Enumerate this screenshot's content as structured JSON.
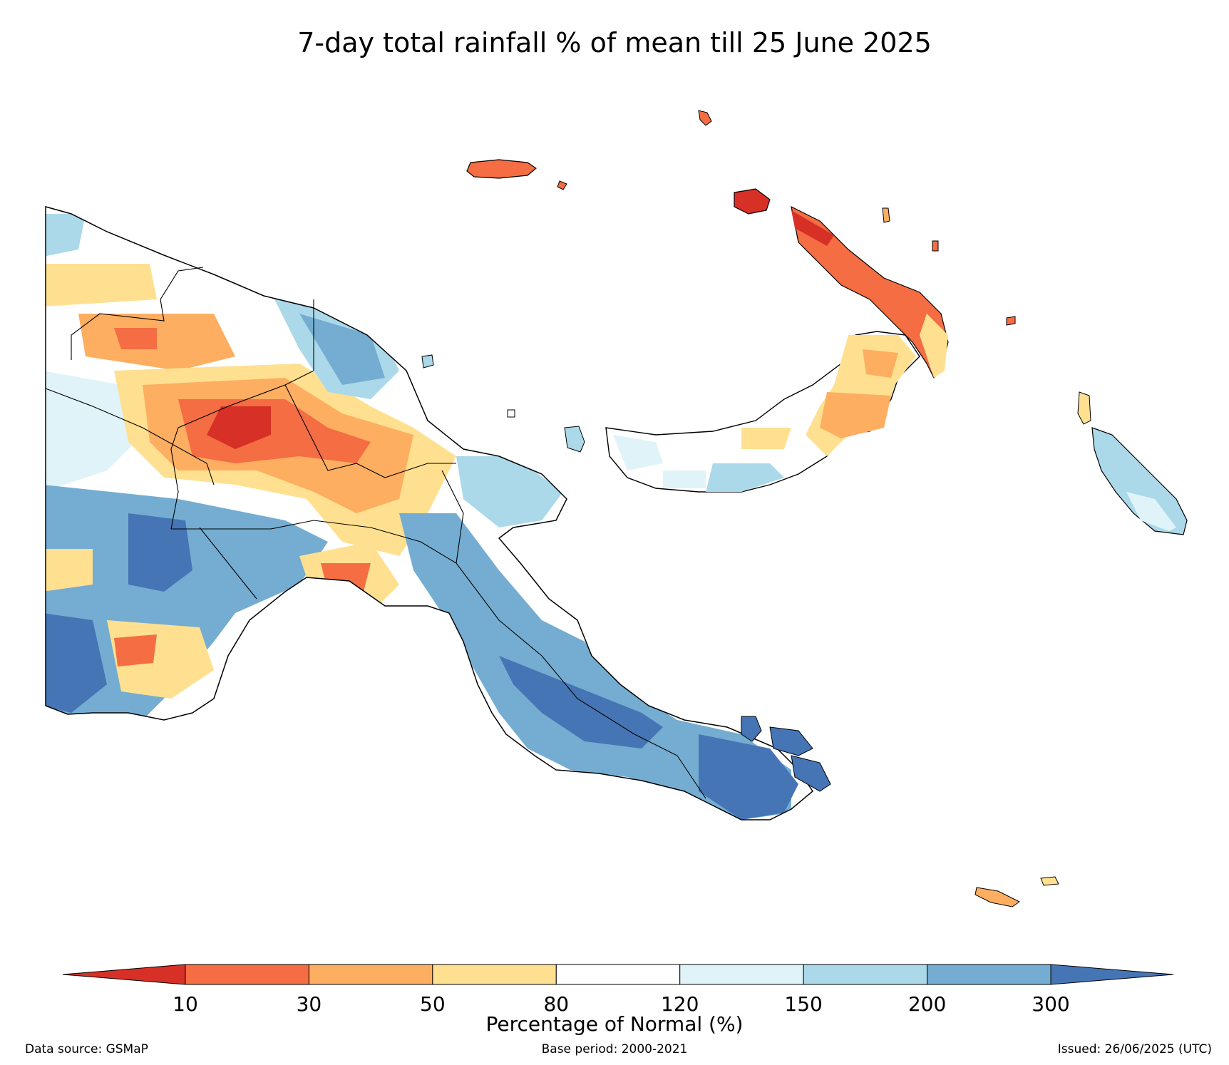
{
  "title": "7-day total rainfall % of mean till 25 June 2025",
  "colorbar": {
    "label": "Percentage of Normal (%)",
    "ticks": [
      "10",
      "30",
      "50",
      "80",
      "120",
      "150",
      "200",
      "300"
    ],
    "below_color": "#d73027",
    "above_color": "#4575b4",
    "bins": [
      {
        "from": 10,
        "to": 30,
        "color": "#f46d43"
      },
      {
        "from": 30,
        "to": 50,
        "color": "#fdae61"
      },
      {
        "from": 50,
        "to": 80,
        "color": "#fee090"
      },
      {
        "from": 80,
        "to": 120,
        "color": "#ffffff"
      },
      {
        "from": 120,
        "to": 150,
        "color": "#e0f3f8"
      },
      {
        "from": 150,
        "to": 200,
        "color": "#abd9e9"
      },
      {
        "from": 200,
        "to": 300,
        "color": "#74add1"
      }
    ]
  },
  "footer": {
    "source": "Data source: GSMaP",
    "base_period": "Base period: 2000-2021",
    "issued": "Issued: 26/06/2025 (UTC)"
  }
}
